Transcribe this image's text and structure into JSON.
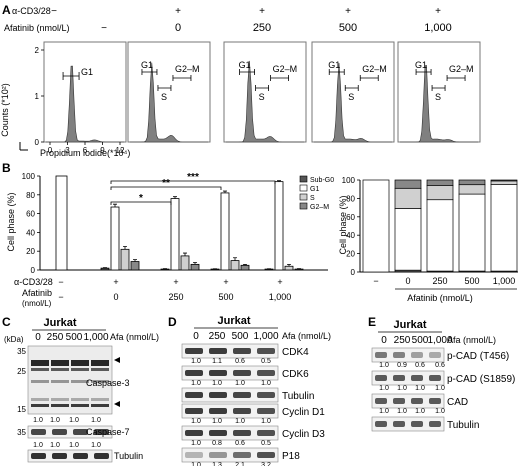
{
  "figure": {
    "panel_labels": {
      "A": "A",
      "B": "B",
      "C": "C",
      "D": "D",
      "E": "E"
    },
    "panel_a": {
      "cd3_label": "α-CD3/28",
      "afa_label": "Afatinib (nmol/L)",
      "cd3_values": [
        "−",
        "+",
        "+",
        "+",
        "+"
      ],
      "afa_values": [
        "",
        "0",
        "250",
        "500",
        "1,000"
      ],
      "y_label": "Counts (*10²)",
      "y_ticks": [
        "0",
        "1",
        "2"
      ],
      "x_label": "Propidium iodide(*10⁴)",
      "x_ticks": [
        "0",
        "3",
        "6",
        "9",
        "12"
      ],
      "gate_g1": "G1",
      "gate_s": "S",
      "gate_g2m": "G2–M"
    },
    "panel_b": {
      "y_label": "Cell phase (%)",
      "y_ticks": [
        "0",
        "20",
        "40",
        "60",
        "80",
        "100"
      ],
      "cd3_label": "α-CD3/28",
      "afa_label": "Afatinib",
      "afa_unit": "(nmol/L)",
      "cd3_values": [
        "−",
        "+",
        "+",
        "+",
        "+"
      ],
      "afa_values": [
        "−",
        "0",
        "250",
        "500",
        "1,000"
      ],
      "sig": [
        "*",
        "**",
        "***"
      ],
      "legend": [
        "Sub-G0",
        "G1",
        "S",
        "G2–M"
      ],
      "stack_y_ticks": [
        "0",
        "20",
        "40",
        "60",
        "80",
        "100"
      ],
      "stack_x_labels": [
        "−",
        "0",
        "250",
        "500",
        "1,000"
      ],
      "stack_x_title": "Afatinib (nmol/L)"
    },
    "panel_c": {
      "title": "Jurkat",
      "kda": "(kDa)",
      "lanes": [
        "0",
        "250",
        "500",
        "1,000"
      ],
      "afa": "Afa (nmol/L)",
      "mw_35": "35",
      "mw_25": "25",
      "mw_15": "15",
      "mw_35b": "35",
      "casp3": "Caspase-3",
      "casp7": "Caspase-7",
      "tubulin": "Tubulin",
      "q1": [
        "1.0",
        "1.0",
        "1.0",
        "1.0"
      ],
      "q2": [
        "1.0",
        "1.0",
        "1.0",
        "1.0"
      ],
      "q3": [
        "1.0",
        "1.0",
        "1.0",
        "1.0"
      ]
    },
    "panel_d": {
      "title": "Jurkat",
      "lanes": [
        "0",
        "250",
        "500",
        "1,000"
      ],
      "afa": "Afa (nmol/L)",
      "rows": [
        {
          "name": "CDK4",
          "q": [
            "1.0",
            "1.1",
            "0.6",
            "0.5"
          ]
        },
        {
          "name": "CDK6",
          "q": [
            "1.0",
            "1.0",
            "1.0",
            "1.0"
          ]
        },
        {
          "name": "Tubulin",
          "q": []
        },
        {
          "name": "Cyclin D1",
          "q": [
            "1.0",
            "1.0",
            "1.0",
            "1.0"
          ]
        },
        {
          "name": "Cyclin D3",
          "q": [
            "1.0",
            "0.8",
            "0.6",
            "0.5"
          ]
        },
        {
          "name": "P18",
          "q": [
            "1.0",
            "1.3",
            "2.1",
            "3.2"
          ]
        },
        {
          "name": "Tubulin",
          "q": []
        }
      ]
    },
    "panel_e": {
      "title": "Jurkat",
      "lanes": [
        "0",
        "250",
        "500",
        "1,000"
      ],
      "afa": "Afa (nmol/L)",
      "rows": [
        {
          "name": "p-CAD (T456)",
          "q": [
            "1.0",
            "0.9",
            "0.6",
            "0.6"
          ]
        },
        {
          "name": "p-CAD (S1859)",
          "q": [
            "1.0",
            "1.0",
            "1.0",
            "1.0"
          ]
        },
        {
          "name": "CAD",
          "q": [
            "1.0",
            "1.0",
            "1.0",
            "1.0"
          ]
        },
        {
          "name": "Tubulin",
          "q": []
        }
      ]
    }
  },
  "chart_data": [
    {
      "type": "bar",
      "categories": [
        "−",
        "0",
        "250",
        "500",
        "1,000"
      ],
      "series": [
        {
          "name": "Sub-G0",
          "values": [
            0,
            2,
            1,
            1,
            1
          ]
        },
        {
          "name": "G1",
          "values": [
            100,
            67,
            76,
            82,
            94
          ]
        },
        {
          "name": "S",
          "values": [
            0,
            22,
            15,
            10,
            4
          ]
        },
        {
          "name": "G2–M",
          "values": [
            0,
            9,
            6,
            5,
            1
          ]
        }
      ],
      "title": "",
      "xlabel": "",
      "ylabel": "Cell phase (%)",
      "ylim": [
        0,
        100
      ]
    },
    {
      "type": "bar",
      "categories": [
        "−",
        "0",
        "250",
        "500",
        "1,000"
      ],
      "series": [
        {
          "name": "Sub-G0",
          "values": [
            0,
            2,
            1,
            1,
            1
          ]
        },
        {
          "name": "G1",
          "values": [
            100,
            67,
            76,
            82,
            94
          ]
        },
        {
          "name": "S",
          "values": [
            0,
            22,
            15,
            10,
            4
          ]
        },
        {
          "name": "G2–M",
          "values": [
            0,
            9,
            6,
            5,
            1
          ]
        }
      ],
      "title": "",
      "xlabel": "Afatinib (nmol/L)",
      "ylabel": "Cell phase (%)",
      "ylim": [
        0,
        100
      ]
    }
  ]
}
